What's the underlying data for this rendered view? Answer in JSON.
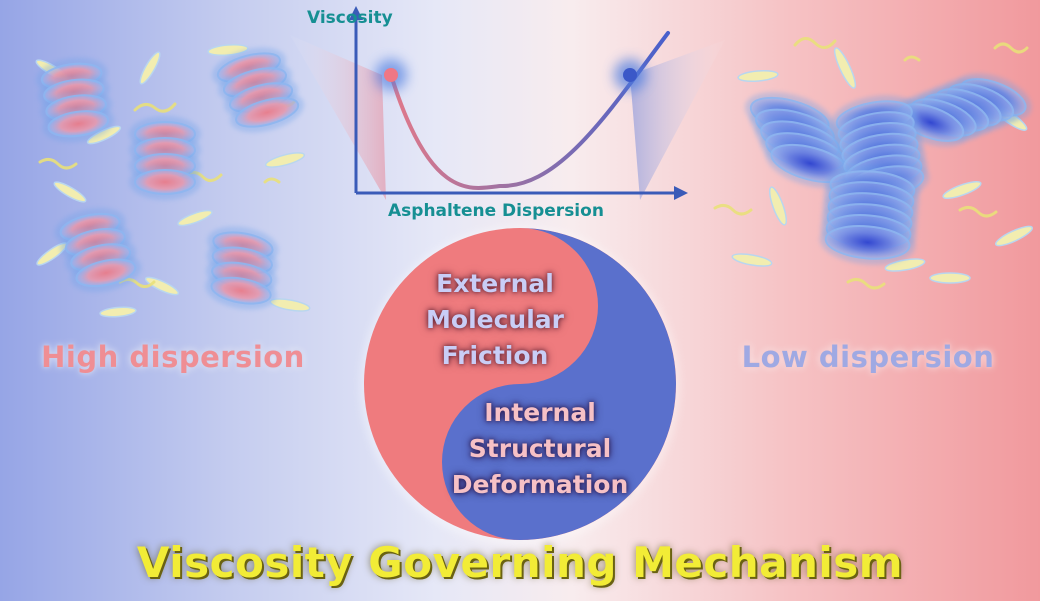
{
  "title": "Viscosity Governing Mechanism",
  "chart": {
    "y_axis_label": "Viscosity",
    "x_axis_label": "Asphaltene Dispersion"
  },
  "panels": {
    "left_label": "High dispersion",
    "right_label": "Low dispersion"
  },
  "mechanisms": {
    "external": "External Molecular Friction",
    "internal": "Internal Structural Deformation"
  },
  "colors": {
    "title": "#f2ec36",
    "axis_label": "#168f93",
    "high_dispersion": "#ef8e94",
    "low_dispersion": "#9fa9e3",
    "yin": "#ef7b7e",
    "yang": "#5a70cc",
    "resin": "#f2edb0"
  }
}
